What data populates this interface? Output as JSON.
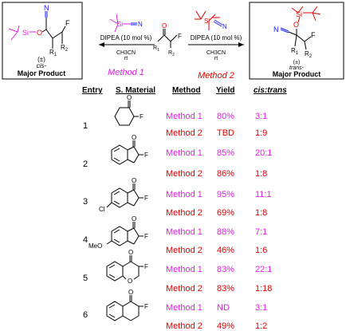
{
  "colors": {
    "method1": "#e020e0",
    "method2": "#e00000",
    "bond": "#000000",
    "nitrile_n": "#1a1aff",
    "oxygen": "#e00000",
    "fluorine": "#000000",
    "silicon": "#e020e0"
  },
  "scheme": {
    "left_product": {
      "stereo_note": "(±)",
      "descriptor": "cis-",
      "label": "Major Product"
    },
    "right_product": {
      "stereo_note": "(±)",
      "descriptor": "trans-",
      "label": "Major Product"
    },
    "left_arrow": {
      "reagent_line": "DIPEA (10 mol %)",
      "solvent": "CH3CN",
      "temperature": "rt",
      "method_label": "Method 1"
    },
    "right_arrow": {
      "reagent_line": "DIPEA (10 mol %)",
      "solvent": "CH3CN",
      "temperature": "rt",
      "method_label": "Method 2"
    },
    "atom_labels": {
      "N": "N",
      "O": "O",
      "F": "F",
      "Si": "Si",
      "R1": "R",
      "R2": "R",
      "sub1": "1",
      "sub2": "2"
    }
  },
  "table": {
    "headers": {
      "entry": "Entry",
      "material": "S. Material",
      "method": "Method",
      "yield": "Yield",
      "ratio": "cis:trans"
    },
    "atom_labels": {
      "O": "O",
      "F": "F",
      "Cl": "Cl",
      "MeO": "MeO"
    },
    "rows": [
      {
        "entry": "1",
        "m1": {
          "method": "Method 1",
          "yield": "80%",
          "ratio": "3:1"
        },
        "m2": {
          "method": "Method 2",
          "yield": "TBD",
          "ratio": "1:9"
        }
      },
      {
        "entry": "2",
        "m1": {
          "method": "Method 1",
          "yield": "85%",
          "ratio": "20:1"
        },
        "m2": {
          "method": "Method 2",
          "yield": "86%",
          "ratio": "1:8"
        }
      },
      {
        "entry": "3",
        "m1": {
          "method": "Method 1",
          "yield": "95%",
          "ratio": "11:1"
        },
        "m2": {
          "method": "Method 2",
          "yield": "69%",
          "ratio": "1:8"
        }
      },
      {
        "entry": "4",
        "m1": {
          "method": "Method 1",
          "yield": "88%",
          "ratio": "7:1"
        },
        "m2": {
          "method": "Method 2",
          "yield": "46%",
          "ratio": "1:6"
        }
      },
      {
        "entry": "5",
        "m1": {
          "method": "Method 1",
          "yield": "83%",
          "ratio": "22:1"
        },
        "m2": {
          "method": "Method 2",
          "yield": "83%",
          "ratio": "1:18"
        }
      },
      {
        "entry": "6",
        "m1": {
          "method": "Method 1",
          "yield": "ND",
          "ratio": "3:1"
        },
        "m2": {
          "method": "Method 2",
          "yield": "49%",
          "ratio": "1:2"
        }
      }
    ]
  }
}
